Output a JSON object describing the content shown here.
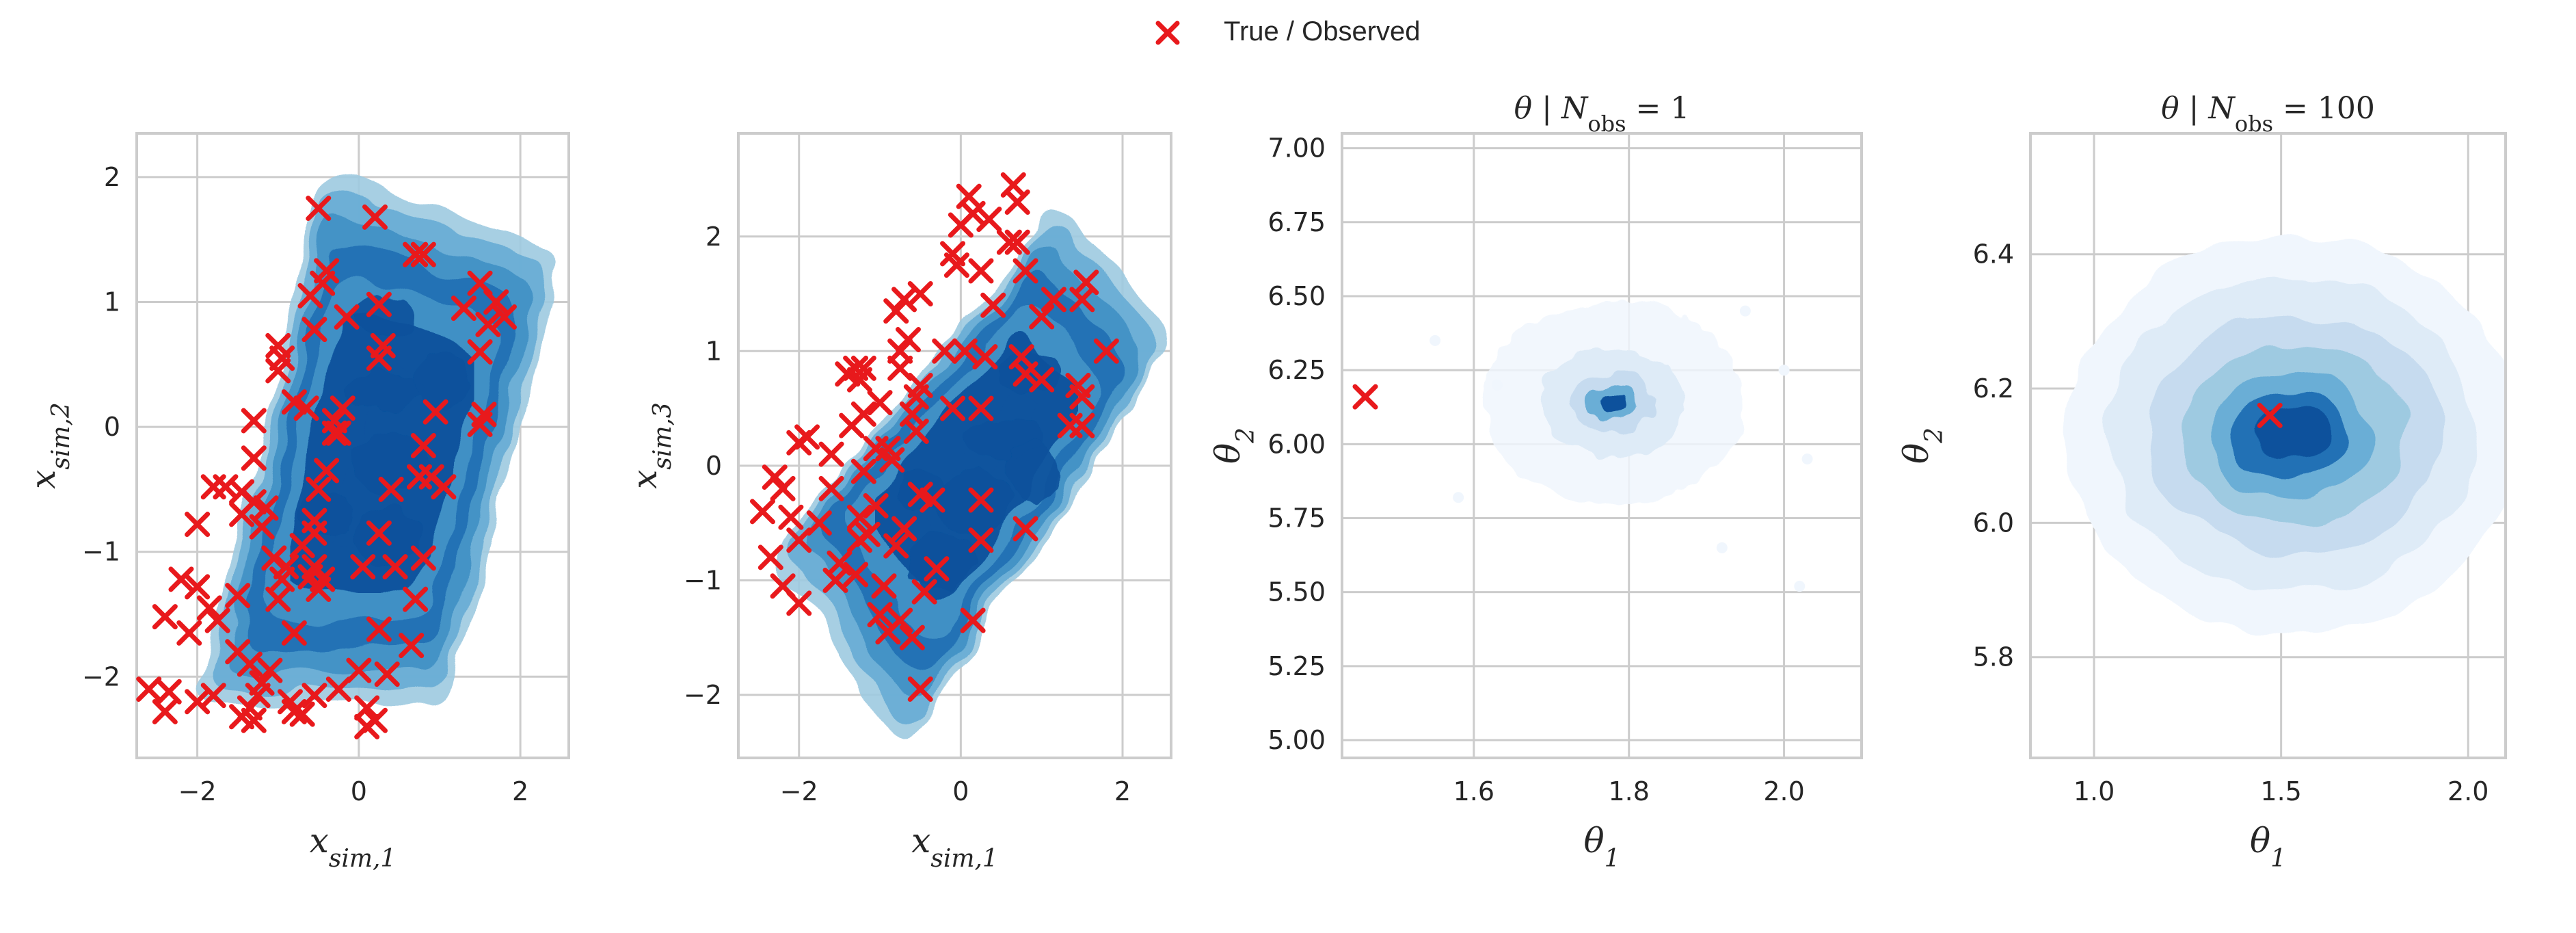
{
  "legend": {
    "label": "True / Observed",
    "marker_color": "#e8191c"
  },
  "colors": {
    "marker": "#e8191c",
    "grid": "#cccccc",
    "spine": "#cccccc",
    "kde_levels": [
      "#f0f6fd",
      "#deebf7",
      "#c6dbef",
      "#9ecae1",
      "#6baed6",
      "#4292c6",
      "#2171b5",
      "#08519c"
    ]
  },
  "chart_data": [
    {
      "type": "scatter",
      "panel": "sim-x1-x2",
      "title": "",
      "xlabel": "x",
      "xlabel_sub": "sim,1",
      "ylabel": "x",
      "ylabel_sub": "sim,2",
      "xlim": [
        -2.75,
        2.6
      ],
      "ylim": [
        -2.65,
        2.35
      ],
      "xticks": [
        -2,
        0,
        2
      ],
      "xtick_labels": [
        "−2",
        "0",
        "2"
      ],
      "yticks": [
        -2,
        -1,
        0,
        1,
        2
      ],
      "ytick_labels": [
        "−2",
        "−1",
        "0",
        "1",
        "2"
      ],
      "grid": true,
      "kde": {
        "density": "simulated",
        "support": [
          [
            -1.7,
            -2.1
          ],
          [
            0.9,
            -2.05
          ],
          [
            2.25,
            1.3
          ],
          [
            -0.25,
            1.85
          ]
        ]
      },
      "observed": [
        [
          -0.5,
          1.75
        ],
        [
          0.2,
          1.68
        ],
        [
          0.7,
          1.38
        ],
        [
          0.8,
          1.38
        ],
        [
          -0.4,
          1.25
        ],
        [
          -0.45,
          1.15
        ],
        [
          -0.6,
          1.05
        ],
        [
          0.25,
          0.98
        ],
        [
          1.5,
          1.15
        ],
        [
          1.7,
          1.0
        ],
        [
          1.3,
          0.95
        ],
        [
          1.6,
          0.82
        ],
        [
          1.8,
          0.88
        ],
        [
          -0.15,
          0.88
        ],
        [
          -0.55,
          0.78
        ],
        [
          0.3,
          0.65
        ],
        [
          0.25,
          0.55
        ],
        [
          1.5,
          0.6
        ],
        [
          -1.0,
          0.65
        ],
        [
          -0.95,
          0.55
        ],
        [
          -1.0,
          0.45
        ],
        [
          -0.8,
          0.2
        ],
        [
          -0.65,
          0.15
        ],
        [
          -0.2,
          0.15
        ],
        [
          -0.3,
          0.05
        ],
        [
          0.95,
          0.12
        ],
        [
          1.55,
          0.1
        ],
        [
          1.5,
          0.02
        ],
        [
          -1.3,
          0.05
        ],
        [
          -0.3,
          -0.05
        ],
        [
          -0.25,
          -0.05
        ],
        [
          0.8,
          -0.15
        ],
        [
          -1.3,
          -0.25
        ],
        [
          -0.4,
          -0.35
        ],
        [
          0.75,
          -0.4
        ],
        [
          0.9,
          -0.4
        ],
        [
          1.05,
          -0.48
        ],
        [
          -1.8,
          -0.48
        ],
        [
          -1.65,
          -0.48
        ],
        [
          -1.45,
          -0.52
        ],
        [
          -0.5,
          -0.5
        ],
        [
          0.4,
          -0.5
        ],
        [
          -1.3,
          -0.6
        ],
        [
          -1.15,
          -0.65
        ],
        [
          -1.45,
          -0.7
        ],
        [
          -0.55,
          -0.75
        ],
        [
          -1.2,
          -0.8
        ],
        [
          -2.0,
          -0.78
        ],
        [
          -0.55,
          -0.85
        ],
        [
          0.25,
          -0.85
        ],
        [
          -0.7,
          -0.95
        ],
        [
          -1.05,
          -1.05
        ],
        [
          0.8,
          -1.05
        ],
        [
          -0.9,
          -1.12
        ],
        [
          -0.55,
          -1.12
        ],
        [
          0.05,
          -1.12
        ],
        [
          0.45,
          -1.12
        ],
        [
          -0.6,
          -1.2
        ],
        [
          -0.45,
          -1.22
        ],
        [
          -0.95,
          -1.22
        ],
        [
          -2.2,
          -1.22
        ],
        [
          -2.0,
          -1.28
        ],
        [
          -0.5,
          -1.3
        ],
        [
          -1.5,
          -1.35
        ],
        [
          -1.0,
          -1.38
        ],
        [
          0.7,
          -1.38
        ],
        [
          -1.85,
          -1.45
        ],
        [
          -1.75,
          -1.55
        ],
        [
          -2.4,
          -1.52
        ],
        [
          -2.1,
          -1.65
        ],
        [
          0.25,
          -1.62
        ],
        [
          -0.8,
          -1.65
        ],
        [
          0.65,
          -1.75
        ],
        [
          -1.5,
          -1.8
        ],
        [
          -1.35,
          -1.9
        ],
        [
          -1.1,
          -1.95
        ],
        [
          0.35,
          -1.98
        ],
        [
          0.0,
          -1.95
        ],
        [
          -1.2,
          -2.05
        ],
        [
          -2.6,
          -2.1
        ],
        [
          -2.35,
          -2.12
        ],
        [
          -1.8,
          -2.15
        ],
        [
          -2.0,
          -2.2
        ],
        [
          -1.25,
          -2.15
        ],
        [
          -0.85,
          -2.2
        ],
        [
          -0.55,
          -2.15
        ],
        [
          -0.25,
          -2.1
        ],
        [
          -2.4,
          -2.28
        ],
        [
          -1.35,
          -2.25
        ],
        [
          -1.45,
          -2.32
        ],
        [
          -0.8,
          -2.28
        ],
        [
          -0.7,
          -2.3
        ],
        [
          0.1,
          -2.25
        ],
        [
          0.2,
          -2.35
        ],
        [
          0.1,
          -2.4
        ],
        [
          -1.3,
          -2.35
        ]
      ]
    },
    {
      "type": "scatter",
      "panel": "sim-x1-x3",
      "title": "",
      "xlabel": "x",
      "xlabel_sub": "sim,1",
      "ylabel": "x",
      "ylabel_sub": "sim,3",
      "xlim": [
        -2.75,
        2.6
      ],
      "ylim": [
        -2.55,
        2.9
      ],
      "xticks": [
        -2,
        0,
        2
      ],
      "xtick_labels": [
        "−2",
        "0",
        "2"
      ],
      "yticks": [
        -2,
        -1,
        0,
        1,
        2
      ],
      "ytick_labels": [
        "−2",
        "−1",
        "0",
        "1",
        "2"
      ],
      "grid": true,
      "kde": {
        "density": "simulated",
        "support": [
          [
            -2.0,
            -0.8
          ],
          [
            -0.7,
            -2.2
          ],
          [
            2.35,
            1.1
          ],
          [
            1.2,
            2.0
          ]
        ]
      },
      "observed": [
        [
          0.65,
          2.45
        ],
        [
          0.1,
          2.35
        ],
        [
          0.7,
          2.3
        ],
        [
          0.15,
          2.2
        ],
        [
          0.35,
          2.15
        ],
        [
          0.0,
          2.1
        ],
        [
          0.6,
          1.95
        ],
        [
          0.7,
          1.95
        ],
        [
          -0.1,
          1.85
        ],
        [
          -0.05,
          1.75
        ],
        [
          0.25,
          1.7
        ],
        [
          0.8,
          1.7
        ],
        [
          1.55,
          1.6
        ],
        [
          1.5,
          1.45
        ],
        [
          -0.5,
          1.5
        ],
        [
          -0.7,
          1.45
        ],
        [
          -0.8,
          1.35
        ],
        [
          1.15,
          1.45
        ],
        [
          1.0,
          1.3
        ],
        [
          0.4,
          1.4
        ],
        [
          -0.65,
          1.1
        ],
        [
          -0.75,
          1.0
        ],
        [
          -0.2,
          1.0
        ],
        [
          0.05,
          1.0
        ],
        [
          0.3,
          0.95
        ],
        [
          0.75,
          0.95
        ],
        [
          1.8,
          1.0
        ],
        [
          -0.75,
          0.85
        ],
        [
          -1.3,
          0.85
        ],
        [
          -1.2,
          0.85
        ],
        [
          -1.4,
          0.8
        ],
        [
          -1.25,
          0.75
        ],
        [
          0.8,
          0.8
        ],
        [
          1.0,
          0.75
        ],
        [
          -0.5,
          0.7
        ],
        [
          -0.55,
          0.6
        ],
        [
          -1.0,
          0.55
        ],
        [
          -1.2,
          0.45
        ],
        [
          -0.6,
          0.45
        ],
        [
          1.45,
          0.7
        ],
        [
          1.5,
          0.6
        ],
        [
          -0.1,
          0.5
        ],
        [
          0.25,
          0.5
        ],
        [
          -0.55,
          0.3
        ],
        [
          -1.35,
          0.35
        ],
        [
          -1.05,
          0.15
        ],
        [
          -0.9,
          0.15
        ],
        [
          -1.9,
          0.25
        ],
        [
          -1.6,
          0.1
        ],
        [
          -2.0,
          0.2
        ],
        [
          1.35,
          0.35
        ],
        [
          1.5,
          0.35
        ],
        [
          -0.85,
          0.05
        ],
        [
          -1.2,
          -0.05
        ],
        [
          -2.3,
          -0.1
        ],
        [
          -2.2,
          -0.2
        ],
        [
          -0.5,
          -0.25
        ],
        [
          -0.35,
          -0.3
        ],
        [
          -1.05,
          -0.35
        ],
        [
          -1.25,
          -0.45
        ],
        [
          -2.45,
          -0.4
        ],
        [
          -2.1,
          -0.45
        ],
        [
          0.25,
          -0.3
        ],
        [
          -1.6,
          -0.2
        ],
        [
          -1.75,
          -0.5
        ],
        [
          -0.7,
          -0.55
        ],
        [
          -1.15,
          -0.6
        ],
        [
          -1.25,
          -0.65
        ],
        [
          -2.0,
          -0.65
        ],
        [
          0.8,
          -0.55
        ],
        [
          -0.8,
          -0.7
        ],
        [
          0.25,
          -0.65
        ],
        [
          -2.35,
          -0.8
        ],
        [
          -1.5,
          -0.85
        ],
        [
          -1.3,
          -0.95
        ],
        [
          -1.55,
          -1.0
        ],
        [
          -0.3,
          -0.9
        ],
        [
          -0.95,
          -1.05
        ],
        [
          -2.2,
          -1.05
        ],
        [
          -0.45,
          -1.1
        ],
        [
          -1.0,
          -1.3
        ],
        [
          -2.0,
          -1.2
        ],
        [
          0.15,
          -1.35
        ],
        [
          -0.75,
          -1.35
        ],
        [
          -0.6,
          -1.5
        ],
        [
          -0.9,
          -1.45
        ],
        [
          -0.5,
          -1.95
        ]
      ]
    },
    {
      "type": "scatter",
      "panel": "posterior-nobs-1",
      "title": "θ | N",
      "title_sub": "obs",
      "title_suffix": " = 1",
      "xlabel": "θ",
      "xlabel_sub": "1",
      "ylabel": "θ",
      "ylabel_sub": "2",
      "xlim": [
        1.43,
        2.1
      ],
      "ylim": [
        4.94,
        7.05
      ],
      "xticks": [
        1.6,
        1.8,
        2.0
      ],
      "xtick_labels": [
        "1.6",
        "1.8",
        "2.0"
      ],
      "yticks": [
        5.0,
        5.25,
        5.5,
        5.75,
        6.0,
        6.25,
        6.5,
        6.75,
        7.0
      ],
      "ytick_labels": [
        "5.00",
        "5.25",
        "5.50",
        "5.75",
        "6.00",
        "6.25",
        "6.50",
        "6.75",
        "7.00"
      ],
      "grid": true,
      "kde": {
        "density": "posterior",
        "mode": [
          1.79,
          6.14
        ]
      },
      "observed": [
        [
          1.46,
          6.16
        ]
      ]
    },
    {
      "type": "scatter",
      "panel": "posterior-nobs-100",
      "title": "θ | N",
      "title_sub": "obs",
      "title_suffix": " = 100",
      "xlabel": "θ",
      "xlabel_sub": "1",
      "ylabel": "θ",
      "ylabel_sub": "2",
      "xlim": [
        0.83,
        2.1
      ],
      "ylim": [
        5.65,
        6.58
      ],
      "xticks": [
        1.0,
        1.5,
        2.0
      ],
      "xtick_labels": [
        "1.0",
        "1.5",
        "2.0"
      ],
      "yticks": [
        5.8,
        6.0,
        6.2,
        6.4
      ],
      "ytick_labels": [
        "5.8",
        "6.0",
        "6.2",
        "6.4"
      ],
      "grid": true,
      "kde": {
        "density": "posterior",
        "mode": [
          1.55,
          6.14
        ]
      },
      "observed": [
        [
          1.47,
          6.16
        ]
      ]
    }
  ]
}
